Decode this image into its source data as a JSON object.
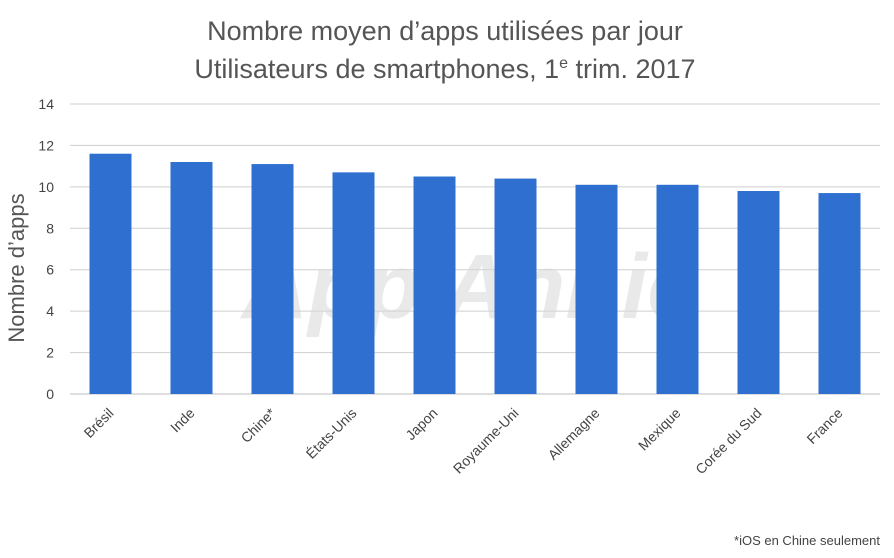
{
  "chart_data": {
    "type": "bar",
    "title": "Nombre moyen d’apps utilisées par jour",
    "subtitle": {
      "before": "Utilisateurs de smartphones, 1",
      "superscript": "e",
      "after": " trim. 2017"
    },
    "xlabel": "",
    "ylabel": "Nombre d’apps",
    "ylim": [
      0,
      14
    ],
    "yticks": [
      0,
      2,
      4,
      6,
      8,
      10,
      12,
      14
    ],
    "grid": true,
    "categories": [
      "Brésil",
      "Inde",
      "Chine*",
      "États-Unis",
      "Japon",
      "Royaume-Uni",
      "Allemagne",
      "Mexique",
      "Corée du Sud",
      "France"
    ],
    "values": [
      11.6,
      11.2,
      11.1,
      10.7,
      10.5,
      10.4,
      10.1,
      10.1,
      9.8,
      9.7
    ],
    "bar_color": "#2e6fcf",
    "watermark": "App Annie",
    "footnote": "*iOS en Chine seulement"
  }
}
